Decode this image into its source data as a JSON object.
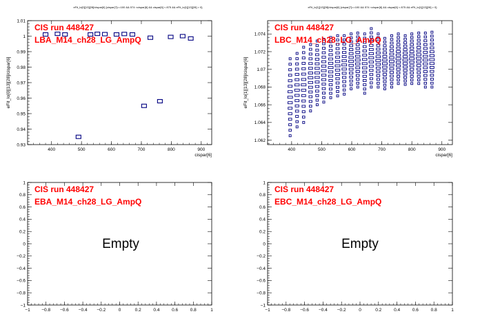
{
  "chart_data": [
    {
      "type": "scatter",
      "title": "eFit_lo[0][13][28]/cispar[6] {cispar[7]==100 && 574 <cispar[6] && cispar[6] < 875 && eFit_lo[1][13][28] > 0}",
      "xlabel": "cispar[6]",
      "ylabel": "eFit_lo[0][13][28]/cispar[6]",
      "xlim": [
        320,
        935
      ],
      "ylim": [
        0.93,
        1.01
      ],
      "x_ticks": [
        "400",
        "500",
        "600",
        "700",
        "800",
        "900"
      ],
      "y_ticks": [
        "0.93",
        "0.94",
        "0.95",
        "0.96",
        "0.97",
        "0.98",
        "0.99",
        "1",
        "1.01"
      ],
      "label_run": "CIS run 448427",
      "label_channel": "LBA_M14_ch28_LG_AmpQ",
      "grid": false,
      "points": [
        [
          380,
          1.0011
        ],
        [
          420,
          1.0015
        ],
        [
          445,
          1.0011
        ],
        [
          490,
          0.935
        ],
        [
          530,
          1.0011
        ],
        [
          553,
          1.0015
        ],
        [
          578,
          1.0013
        ],
        [
          617,
          1.0011
        ],
        [
          643,
          1.0014
        ],
        [
          670,
          1.0011
        ],
        [
          709,
          0.955
        ],
        [
          730,
          0.999
        ],
        [
          762,
          0.958
        ],
        [
          798,
          0.9995
        ],
        [
          838,
          1.0
        ],
        [
          865,
          0.9985
        ]
      ]
    },
    {
      "type": "scatter",
      "title": "eFit_lo[1][13][28]/cispar[6] {cispar[7]==100 && 574 <cispar[6] && cispar[6] < 875 && eFit_lo[1][13][28] > 0}",
      "xlabel": "cispar[6]",
      "ylabel": "eFit_lo[1][13][28]/cispar[6]",
      "xlim": [
        320,
        935
      ],
      "ylim": [
        1.0615,
        1.0755
      ],
      "x_ticks": [
        "400",
        "500",
        "600",
        "700",
        "800",
        "900"
      ],
      "y_ticks": [
        "1.062",
        "1.064",
        "1.066",
        "1.068",
        "1.07",
        "1.072",
        "1.074"
      ],
      "label_run": "CIS run 448427",
      "label_channel": "LBC_M14_ch28_LG_AmpQ",
      "grid": false,
      "columns": [
        {
          "x": 395,
          "ymin": 1.0625,
          "ymax": 1.0712
        },
        {
          "x": 418,
          "ymin": 1.0635,
          "ymax": 1.0718
        },
        {
          "x": 440,
          "ymin": 1.064,
          "ymax": 1.0725
        },
        {
          "x": 463,
          "ymin": 1.0653,
          "ymax": 1.0728
        },
        {
          "x": 485,
          "ymin": 1.066,
          "ymax": 1.0732
        },
        {
          "x": 507,
          "ymin": 1.0663,
          "ymax": 1.0734
        },
        {
          "x": 530,
          "ymin": 1.0668,
          "ymax": 1.0736
        },
        {
          "x": 553,
          "ymin": 1.067,
          "ymax": 1.0738
        },
        {
          "x": 575,
          "ymin": 1.0672,
          "ymax": 1.0738
        },
        {
          "x": 598,
          "ymin": 1.0678,
          "ymax": 1.074
        },
        {
          "x": 620,
          "ymin": 1.068,
          "ymax": 1.0741
        },
        {
          "x": 643,
          "ymin": 1.0673,
          "ymax": 1.074
        },
        {
          "x": 665,
          "ymin": 1.068,
          "ymax": 1.0746
        },
        {
          "x": 688,
          "ymin": 1.068,
          "ymax": 1.074
        },
        {
          "x": 710,
          "ymin": 1.0678,
          "ymax": 1.0735
        },
        {
          "x": 733,
          "ymin": 1.068,
          "ymax": 1.0738
        },
        {
          "x": 755,
          "ymin": 1.0684,
          "ymax": 1.074
        },
        {
          "x": 778,
          "ymin": 1.0683,
          "ymax": 1.0738
        },
        {
          "x": 800,
          "ymin": 1.0684,
          "ymax": 1.074
        },
        {
          "x": 823,
          "ymin": 1.0684,
          "ymax": 1.0741
        },
        {
          "x": 845,
          "ymin": 1.068,
          "ymax": 1.0741
        },
        {
          "x": 867,
          "ymin": 1.068,
          "ymax": 1.0742
        }
      ]
    },
    {
      "type": "scatter",
      "title": "",
      "xlabel": "",
      "ylabel": "",
      "xlim": [
        -1,
        1
      ],
      "ylim": [
        -1,
        1
      ],
      "x_ticks": [
        "−1",
        "−0.8",
        "−0.6",
        "−0.4",
        "−0.2",
        "0",
        "0.2",
        "0.4",
        "0.6",
        "0.8",
        "1"
      ],
      "y_ticks": [
        "−1",
        "−0.8",
        "−0.6",
        "−0.4",
        "−0.2",
        "0",
        "0.2",
        "0.4",
        "0.6",
        "0.8",
        "1"
      ],
      "label_run": "CIS run 448427",
      "label_channel": "EBA_M14_ch28_LG_AmpQ",
      "message": "Empty",
      "grid": false
    },
    {
      "type": "scatter",
      "title": "",
      "xlabel": "",
      "ylabel": "",
      "xlim": [
        -1,
        1
      ],
      "ylim": [
        -1,
        1
      ],
      "x_ticks": [
        "−1",
        "−0.8",
        "−0.6",
        "−0.4",
        "−0.2",
        "0",
        "0.2",
        "0.4",
        "0.6",
        "0.8",
        "1"
      ],
      "y_ticks": [
        "−1",
        "−0.8",
        "−0.6",
        "−0.4",
        "−0.2",
        "0",
        "0.2",
        "0.4",
        "0.6",
        "0.8",
        "1"
      ],
      "label_run": "CIS run 448427",
      "label_channel": "EBC_M14_ch28_LG_AmpQ",
      "message": "Empty",
      "grid": false
    }
  ]
}
